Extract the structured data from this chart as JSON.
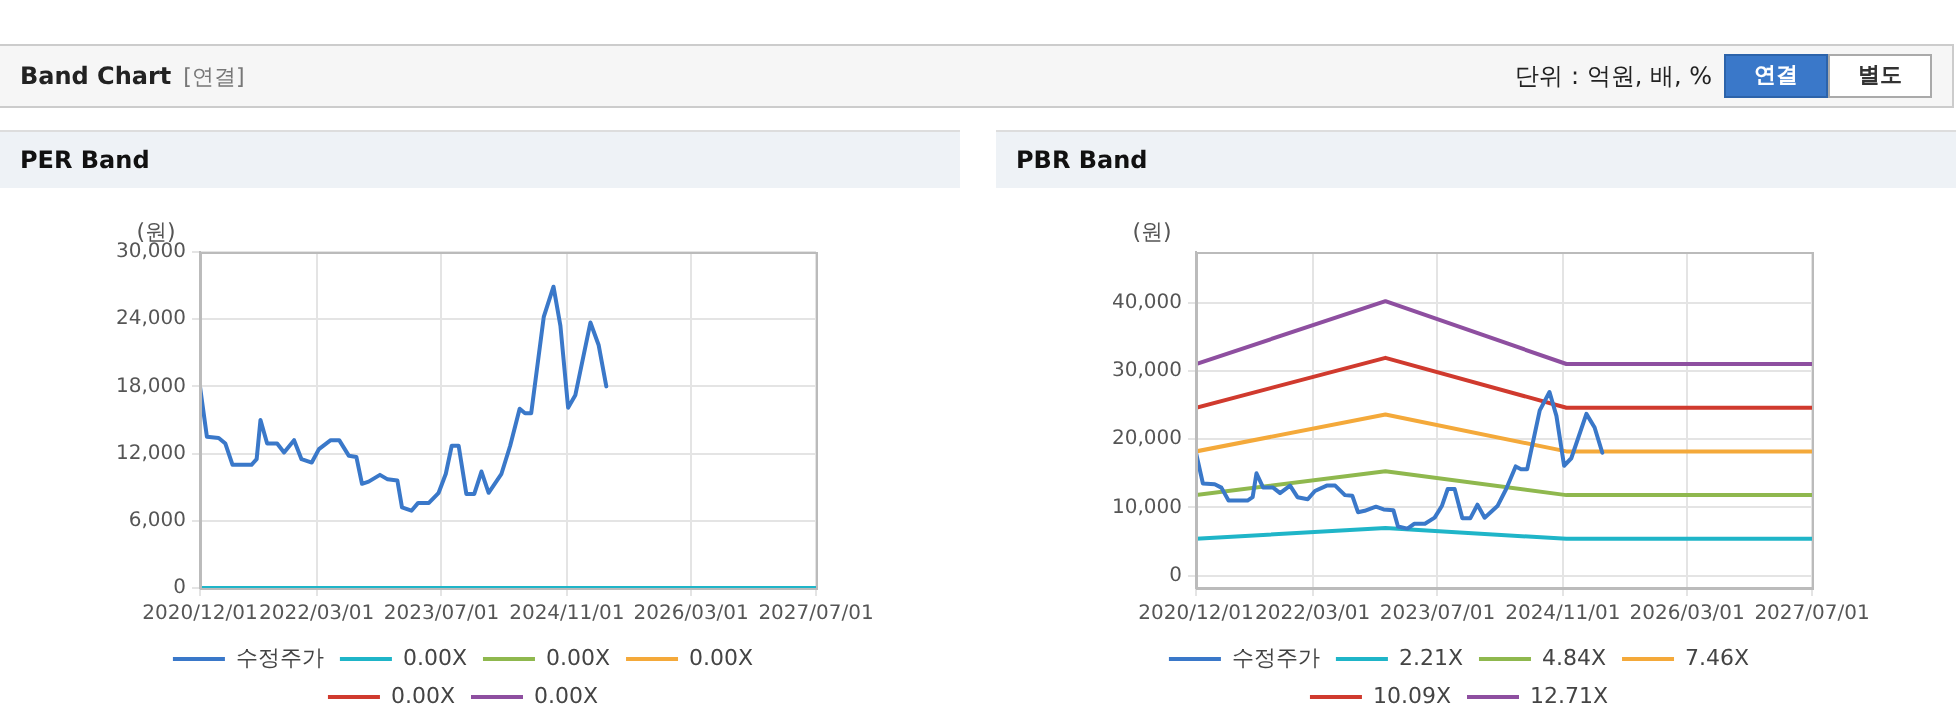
{
  "chart_data": [
    {
      "type": "other",
      "title": "Band Chart",
      "annotations": [
        "[연결]",
        "단위 : 억원, 배, %",
        "연결",
        "별도"
      ]
    },
    {
      "type": "line",
      "title": "PER Band",
      "ylabel": "(원)",
      "grid": true,
      "legend": "bottom",
      "marker": "none",
      "line_style": "solid",
      "xlim": [
        "2020-12-01",
        "2027-07-01"
      ],
      "xticks": [
        {
          "value": "2020-12-01",
          "label": "2020/12/01"
        },
        {
          "value": "2022-03-01",
          "label": "2022/03/01"
        },
        {
          "value": "2023-07-01",
          "label": "2023/07/01"
        },
        {
          "value": "2024-11-01",
          "label": "2024/11/01"
        },
        {
          "value": "2026-03-01",
          "label": "2026/03/01"
        },
        {
          "value": "2027-07-01",
          "label": "2027/07/01"
        }
      ],
      "ylim": [
        0,
        30000
      ],
      "yticks": [
        {
          "value": 0,
          "label": "0"
        },
        {
          "value": 6000,
          "label": "6,000"
        },
        {
          "value": 12000,
          "label": "12,000"
        },
        {
          "value": 18000,
          "label": "18,000"
        },
        {
          "value": 24000,
          "label": "24,000"
        },
        {
          "value": 30000,
          "label": "30,000"
        }
      ],
      "x": [
        "2020-12-01",
        "2020-12-28",
        "2021-02-12",
        "2021-03-10",
        "2021-04-07",
        "2021-06-20",
        "2021-07-10",
        "2021-07-25",
        "2021-08-20",
        "2021-09-28",
        "2021-10-25",
        "2021-12-03",
        "2022-01-01",
        "2022-02-10",
        "2022-03-10",
        "2022-04-25",
        "2022-05-28",
        "2022-07-05",
        "2022-08-03",
        "2022-08-25",
        "2022-09-20",
        "2022-11-03",
        "2022-12-03",
        "2023-01-10",
        "2023-01-28",
        "2023-03-06",
        "2023-04-01",
        "2023-05-13",
        "2023-06-20",
        "2023-07-18",
        "2023-08-10",
        "2023-09-06",
        "2023-10-06",
        "2023-11-06",
        "2023-12-04",
        "2024-01-01",
        "2024-02-20",
        "2024-03-25",
        "2024-05-01",
        "2024-05-22",
        "2024-06-15",
        "2024-08-03",
        "2024-09-10",
        "2024-10-07",
        "2024-11-06",
        "2024-12-04",
        "2025-02-01",
        "2025-03-05",
        "2025-04-04"
      ],
      "series": [
        {
          "name": "수정주가",
          "color": "#3a78c9",
          "values": [
            18000,
            13500,
            13400,
            12900,
            11000,
            11000,
            11500,
            15000,
            12900,
            12900,
            12100,
            13200,
            11500,
            11200,
            12400,
            13200,
            13200,
            11800,
            11700,
            9300,
            9500,
            10100,
            9700,
            9600,
            7200,
            6900,
            7600,
            7600,
            8500,
            10200,
            12700,
            12700,
            8400,
            8400,
            10400,
            8500,
            10200,
            12700,
            16000,
            15600,
            15600,
            24200,
            26900,
            23400,
            16100,
            17200,
            23700,
            21700,
            18000
          ]
        },
        {
          "name": "0.00X",
          "color": "#1fb5c8",
          "x": [
            "2020-12-01",
            "2027-07-01"
          ],
          "values": [
            0,
            0
          ]
        },
        {
          "name": "0.00X",
          "color": "#8fb84e",
          "values": [
            null,
            null,
            null,
            null,
            null,
            null,
            null,
            null,
            null,
            null,
            null,
            null,
            null,
            null,
            null,
            null,
            null,
            null,
            null,
            null,
            null,
            null,
            null,
            null,
            null,
            null,
            null,
            null,
            null,
            null,
            null,
            null,
            null,
            null,
            null,
            null,
            null,
            null,
            null,
            null,
            null,
            null,
            null,
            null,
            null,
            null,
            null,
            null,
            null
          ]
        },
        {
          "name": "0.00X",
          "color": "#f4a93a",
          "values": [
            null,
            null,
            null,
            null,
            null,
            null,
            null,
            null,
            null,
            null,
            null,
            null,
            null,
            null,
            null,
            null,
            null,
            null,
            null,
            null,
            null,
            null,
            null,
            null,
            null,
            null,
            null,
            null,
            null,
            null,
            null,
            null,
            null,
            null,
            null,
            null,
            null,
            null,
            null,
            null,
            null,
            null,
            null,
            null,
            null,
            null,
            null,
            null,
            null
          ]
        },
        {
          "name": "0.00X",
          "color": "#d03a2e",
          "values": [
            null,
            null,
            null,
            null,
            null,
            null,
            null,
            null,
            null,
            null,
            null,
            null,
            null,
            null,
            null,
            null,
            null,
            null,
            null,
            null,
            null,
            null,
            null,
            null,
            null,
            null,
            null,
            null,
            null,
            null,
            null,
            null,
            null,
            null,
            null,
            null,
            null,
            null,
            null,
            null,
            null,
            null,
            null,
            null,
            null,
            null,
            null,
            null,
            null
          ]
        },
        {
          "name": "0.00X",
          "color": "#8e4fa0",
          "values": [
            null,
            null,
            null,
            null,
            null,
            null,
            null,
            null,
            null,
            null,
            null,
            null,
            null,
            null,
            null,
            null,
            null,
            null,
            null,
            null,
            null,
            null,
            null,
            null,
            null,
            null,
            null,
            null,
            null,
            null,
            null,
            null,
            null,
            null,
            null,
            null,
            null,
            null,
            null,
            null,
            null,
            null,
            null,
            null,
            null,
            null,
            null,
            null,
            null
          ]
        }
      ]
    },
    {
      "type": "line",
      "title": "PBR Band",
      "ylabel": "(원)",
      "grid": true,
      "legend": "bottom",
      "marker": "none",
      "line_style": "solid",
      "xlim": [
        "2020-12-01",
        "2027-07-01"
      ],
      "xticks": [
        {
          "value": "2020-12-01",
          "label": "2020/12/01"
        },
        {
          "value": "2022-03-01",
          "label": "2022/03/01"
        },
        {
          "value": "2023-07-01",
          "label": "2023/07/01"
        },
        {
          "value": "2024-11-01",
          "label": "2024/11/01"
        },
        {
          "value": "2026-03-01",
          "label": "2026/03/01"
        },
        {
          "value": "2027-07-01",
          "label": "2027/07/01"
        }
      ],
      "ylim": [
        -1800,
        47400
      ],
      "yticks": [
        {
          "value": 0,
          "label": "0"
        },
        {
          "value": 10000,
          "label": "10,000"
        },
        {
          "value": 20000,
          "label": "20,000"
        },
        {
          "value": 30000,
          "label": "30,000"
        },
        {
          "value": 40000,
          "label": "40,000"
        }
      ],
      "x": [
        "2020-12-01",
        "2020-12-28",
        "2021-02-12",
        "2021-03-10",
        "2021-04-07",
        "2021-06-20",
        "2021-07-10",
        "2021-07-25",
        "2021-08-20",
        "2021-09-28",
        "2021-10-25",
        "2021-12-03",
        "2022-01-01",
        "2022-02-10",
        "2022-03-10",
        "2022-04-25",
        "2022-05-28",
        "2022-07-05",
        "2022-08-03",
        "2022-08-25",
        "2022-09-20",
        "2022-11-03",
        "2022-12-03",
        "2023-01-10",
        "2023-01-28",
        "2023-03-06",
        "2023-04-01",
        "2023-05-13",
        "2023-06-20",
        "2023-07-18",
        "2023-08-10",
        "2023-09-06",
        "2023-10-06",
        "2023-11-06",
        "2023-12-04",
        "2024-01-01",
        "2024-02-20",
        "2024-03-25",
        "2024-05-01",
        "2024-05-22",
        "2024-06-15",
        "2024-08-03",
        "2024-09-10",
        "2024-10-07",
        "2024-11-06",
        "2024-12-04",
        "2025-02-01",
        "2025-03-05",
        "2025-04-04"
      ],
      "series": [
        {
          "name": "수정주가",
          "color": "#3a78c9",
          "values": [
            18000,
            13500,
            13400,
            12900,
            11000,
            11000,
            11500,
            15000,
            12900,
            12900,
            12100,
            13200,
            11500,
            11200,
            12400,
            13200,
            13200,
            11800,
            11700,
            9300,
            9500,
            10100,
            9700,
            9600,
            7200,
            6900,
            7600,
            7600,
            8500,
            10200,
            12700,
            12700,
            8400,
            8400,
            10400,
            8500,
            10200,
            12700,
            16000,
            15600,
            15600,
            24200,
            26900,
            23400,
            16100,
            17200,
            23700,
            21700,
            18000
          ]
        },
        {
          "name": "2.21X",
          "color": "#1fb5c8",
          "x": [
            "2020-12-01",
            "2022-12-10",
            "2024-11-15",
            "2027-07-01"
          ],
          "values": [
            5400,
            7000,
            5400,
            5400
          ]
        },
        {
          "name": "4.84X",
          "color": "#8fb84e",
          "x": [
            "2020-12-01",
            "2022-12-10",
            "2024-11-15",
            "2027-07-01"
          ],
          "values": [
            11800,
            15300,
            11800,
            11800
          ]
        },
        {
          "name": "7.46X",
          "color": "#f4a93a",
          "x": [
            "2020-12-01",
            "2022-12-10",
            "2024-11-15",
            "2027-07-01"
          ],
          "values": [
            18200,
            23600,
            18200,
            18200
          ]
        },
        {
          "name": "10.09X",
          "color": "#d03a2e",
          "x": [
            "2020-12-01",
            "2022-12-10",
            "2024-11-15",
            "2027-07-01"
          ],
          "values": [
            24600,
            31900,
            24600,
            24600
          ]
        },
        {
          "name": "12.71X",
          "color": "#8e4fa0",
          "x": [
            "2020-12-01",
            "2022-12-10",
            "2024-11-15",
            "2027-07-01"
          ],
          "values": [
            31000,
            40200,
            31000,
            31000
          ]
        }
      ]
    }
  ]
}
